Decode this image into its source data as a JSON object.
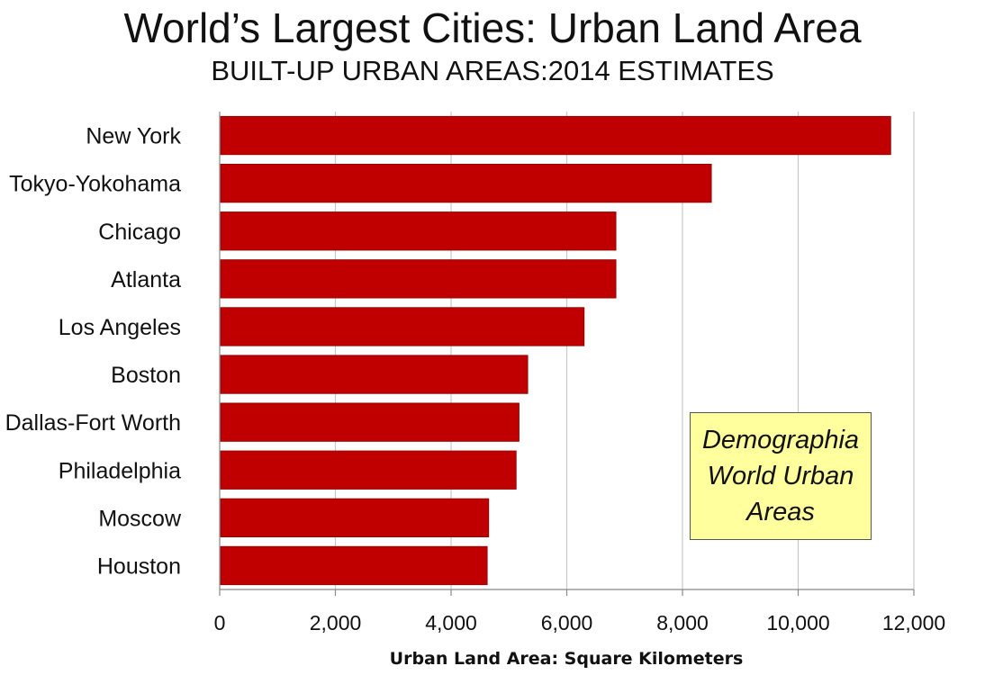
{
  "chart_data": {
    "type": "bar",
    "orientation": "horizontal",
    "title": "World’s Largest Cities: Urban Land Area",
    "subtitle": "BUILT-UP URBAN AREAS:2014 ESTIMATES",
    "xlabel": "Urban Land Area: Square Kilometers",
    "ylabel": "",
    "categories": [
      "New York",
      "Tokyo-Yokohama",
      "Chicago",
      "Atlanta",
      "Los Angeles",
      "Boston",
      "Dallas-Fort Worth",
      "Philadelphia",
      "Moscow",
      "Houston"
    ],
    "values": [
      11600,
      8500,
      6850,
      6850,
      6300,
      5325,
      5175,
      5125,
      4650,
      4625
    ],
    "xlim": [
      0,
      12000
    ],
    "xticks": [
      0,
      2000,
      4000,
      6000,
      8000,
      10000,
      12000
    ],
    "xtick_labels": [
      "0",
      "2,000",
      "4,000",
      "6,000",
      "8,000",
      "10,000",
      "12,000"
    ],
    "grid": "vertical",
    "bar_color": "#c00000",
    "annotation": "Demographia\nWorld Urban\nAreas",
    "annotation_color": "#ffff9e"
  }
}
